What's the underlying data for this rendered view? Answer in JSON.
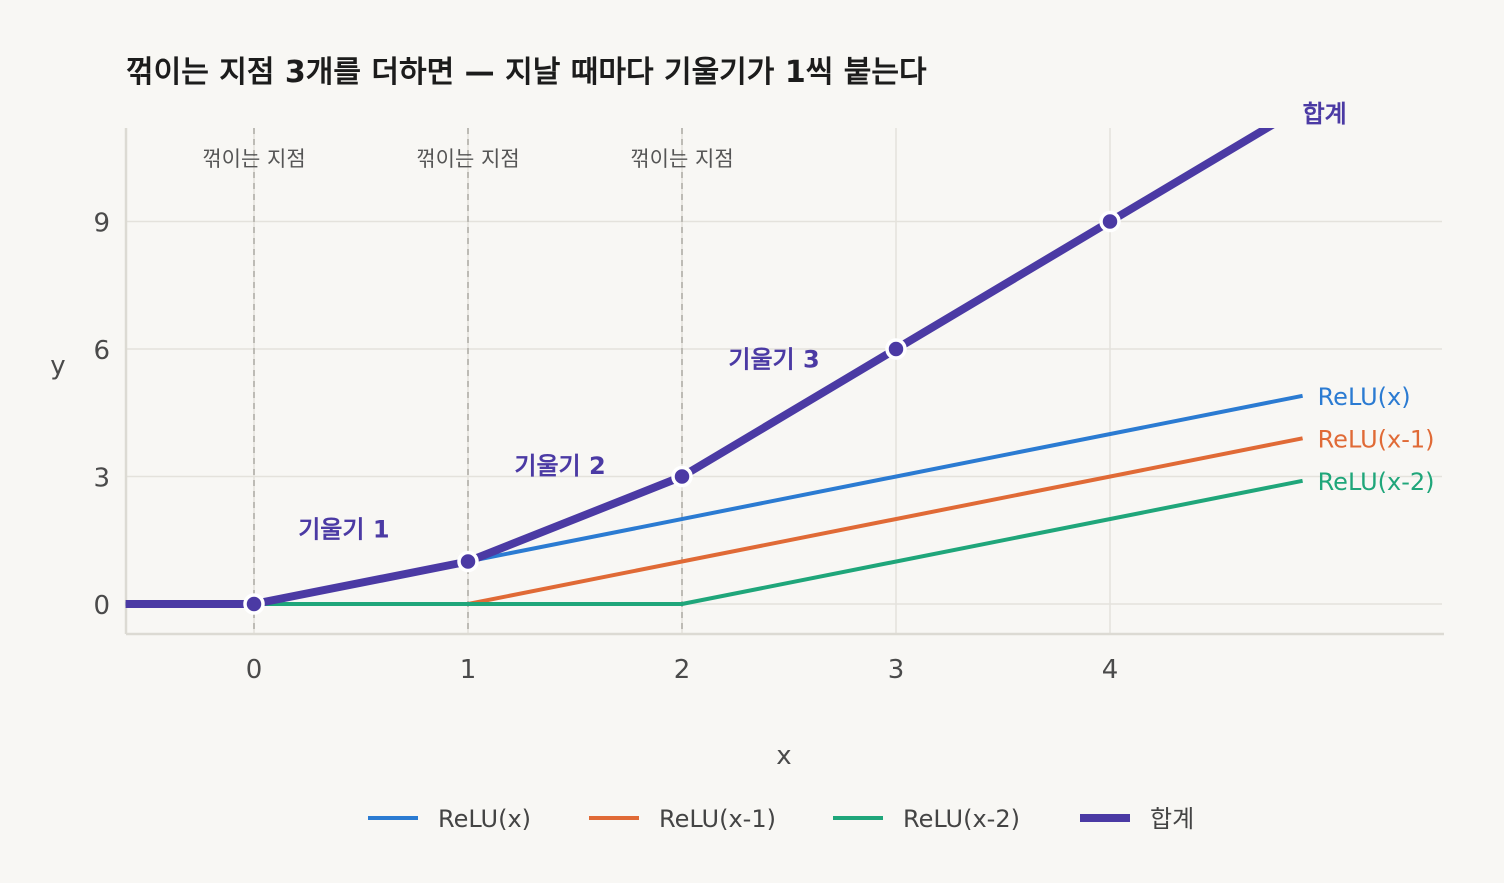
{
  "colors": {
    "background": "#f8f7f4",
    "grid": "#e4e2dc",
    "axis": "#dcdad3",
    "kink_line": "#bdbbb5",
    "relu_x": "#2b7bd2",
    "relu_x1": "#e06a36",
    "relu_x2": "#1fa67a",
    "sum": "#4b3aa4"
  },
  "chart_data": {
    "type": "line",
    "title": "꺾이는 지점 3개를 더하면 — 지날 때마다 기울기가 1씩 붙는다",
    "xlabel": "x",
    "ylabel": "y",
    "xlim": [
      -0.6,
      5.55
    ],
    "ylim": [
      -0.7,
      11.2
    ],
    "x_ticks": [
      0,
      1,
      2,
      3,
      4
    ],
    "x_tick_labels": [
      "0",
      "1",
      "2",
      "3",
      "4"
    ],
    "y_ticks": [
      0,
      3,
      6,
      9
    ],
    "y_tick_labels": [
      "0",
      "3",
      "6",
      "9"
    ],
    "grid": true,
    "legend_position": "bottom",
    "kinks": {
      "x": [
        0,
        1,
        2
      ],
      "labels": [
        "꺾이는 지점",
        "꺾이는 지점",
        "꺾이는 지점"
      ]
    },
    "series": [
      {
        "name": "ReLU(x)",
        "color": "#2b7bd2",
        "width": "normal",
        "x": [
          -0.6,
          0,
          4.9
        ],
        "y": [
          0,
          0,
          4.9
        ]
      },
      {
        "name": "ReLU(x-1)",
        "color": "#e06a36",
        "width": "normal",
        "x": [
          -0.6,
          1,
          4.9
        ],
        "y": [
          0,
          0,
          3.9
        ]
      },
      {
        "name": "ReLU(x-2)",
        "color": "#1fa67a",
        "width": "normal",
        "x": [
          -0.6,
          2,
          4.9
        ],
        "y": [
          0,
          0,
          2.9
        ]
      },
      {
        "name": "합계",
        "color": "#4b3aa4",
        "width": "bold",
        "x": [
          -0.6,
          0,
          1,
          2,
          5.55
        ],
        "y": [
          0,
          0,
          1,
          3,
          13.65
        ]
      }
    ],
    "sum_markers": {
      "x": [
        0,
        1,
        2,
        3,
        4
      ],
      "y": [
        0,
        1,
        3,
        6,
        9
      ]
    },
    "slope_annotations": [
      {
        "text": "기울기 1",
        "x": 0.42,
        "y": 1.75
      },
      {
        "text": "기울기 2",
        "x": 1.43,
        "y": 3.25
      },
      {
        "text": "기울기 3",
        "x": 2.43,
        "y": 5.75
      }
    ],
    "end_labels": [
      {
        "text": "합계",
        "x": 4.9,
        "y": 11.55
      },
      {
        "text": "ReLU(x)",
        "x": 4.97,
        "y": 4.9
      },
      {
        "text": "ReLU(x-1)",
        "x": 4.97,
        "y": 3.9
      },
      {
        "text": "ReLU(x-2)",
        "x": 4.97,
        "y": 2.9
      }
    ]
  }
}
